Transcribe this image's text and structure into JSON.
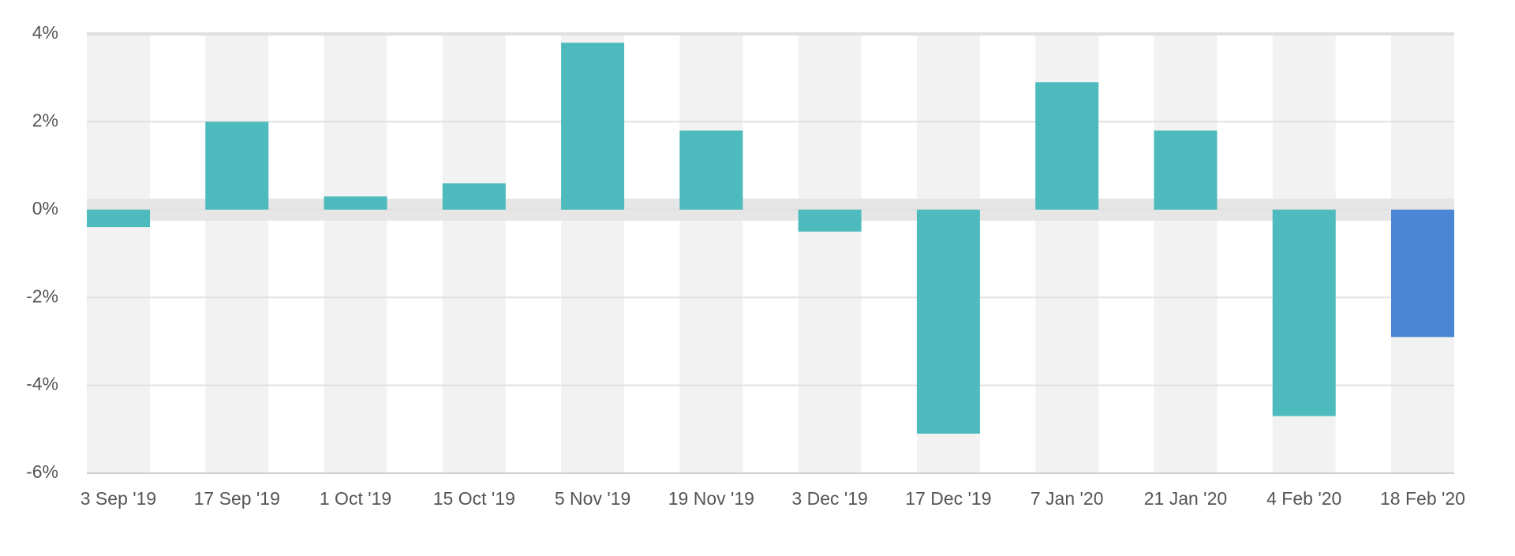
{
  "chart_data": {
    "type": "bar",
    "categories": [
      "3 Sep '19",
      "17 Sep '19",
      "1 Oct '19",
      "15 Oct '19",
      "5 Nov '19",
      "19 Nov '19",
      "3 Dec '19",
      "17 Dec '19",
      "7 Jan '20",
      "21 Jan '20",
      "4 Feb '20",
      "18 Feb '20"
    ],
    "values": [
      -0.4,
      2.0,
      0.3,
      0.6,
      3.8,
      1.8,
      -0.5,
      -5.1,
      2.9,
      1.8,
      -4.7,
      -2.9
    ],
    "colors": [
      "#4dbbbd",
      "#4dbbbd",
      "#4dbbbd",
      "#4dbbbd",
      "#4dbbbd",
      "#4dbbbd",
      "#4dbbbd",
      "#4dbbbd",
      "#4dbbbd",
      "#4dbbbd",
      "#4dbbbd",
      "#4a86d4"
    ],
    "ylim": [
      -6,
      4
    ],
    "yticks": [
      {
        "value": 4,
        "label": "4%"
      },
      {
        "value": 2,
        "label": "2%"
      },
      {
        "value": 0,
        "label": "0%"
      },
      {
        "value": -2,
        "label": "-2%"
      },
      {
        "value": -4,
        "label": "-4%"
      },
      {
        "value": -6,
        "label": "-6%"
      }
    ],
    "grid": true
  }
}
